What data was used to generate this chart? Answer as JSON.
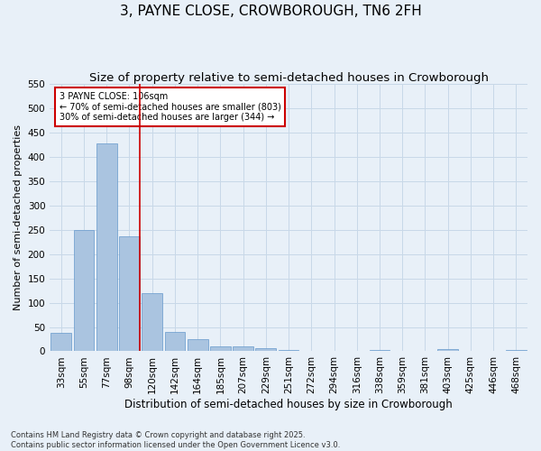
{
  "title": "3, PAYNE CLOSE, CROWBOROUGH, TN6 2FH",
  "subtitle": "Size of property relative to semi-detached houses in Crowborough",
  "xlabel": "Distribution of semi-detached houses by size in Crowborough",
  "ylabel": "Number of semi-detached properties",
  "categories": [
    "33sqm",
    "55sqm",
    "77sqm",
    "98sqm",
    "120sqm",
    "142sqm",
    "164sqm",
    "185sqm",
    "207sqm",
    "229sqm",
    "251sqm",
    "272sqm",
    "294sqm",
    "316sqm",
    "338sqm",
    "359sqm",
    "381sqm",
    "403sqm",
    "425sqm",
    "446sqm",
    "468sqm"
  ],
  "values": [
    38,
    250,
    428,
    237,
    120,
    40,
    25,
    10,
    10,
    6,
    2,
    0,
    0,
    0,
    3,
    0,
    0,
    4,
    0,
    0,
    3
  ],
  "bar_color": "#aac4e0",
  "bar_edge_color": "#6699cc",
  "grid_color": "#c8d8e8",
  "background_color": "#e8f0f8",
  "vline_color": "#cc0000",
  "annotation_text": "3 PAYNE CLOSE: 106sqm\n← 70% of semi-detached houses are smaller (803)\n30% of semi-detached houses are larger (344) →",
  "annotation_box_color": "#ffffff",
  "annotation_box_edge_color": "#cc0000",
  "ylim": [
    0,
    550
  ],
  "yticks": [
    0,
    50,
    100,
    150,
    200,
    250,
    300,
    350,
    400,
    450,
    500,
    550
  ],
  "footer": "Contains HM Land Registry data © Crown copyright and database right 2025.\nContains public sector information licensed under the Open Government Licence v3.0.",
  "title_fontsize": 11,
  "subtitle_fontsize": 9.5,
  "tick_fontsize": 7.5,
  "ylabel_fontsize": 8,
  "xlabel_fontsize": 8.5,
  "footer_fontsize": 6
}
